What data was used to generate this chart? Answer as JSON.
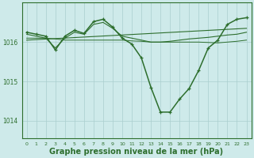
{
  "background_color": "#ceeaea",
  "grid_color": "#aacece",
  "line_color": "#2d6e2d",
  "xlabel": "Graphe pression niveau de la mer (hPa)",
  "xlabel_fontsize": 7,
  "xtick_labels": [
    "0",
    "1",
    "2",
    "3",
    "4",
    "5",
    "6",
    "7",
    "8",
    "9",
    "10",
    "11",
    "12",
    "13",
    "14",
    "15",
    "16",
    "17",
    "18",
    "19",
    "20",
    "21",
    "22",
    "23"
  ],
  "ytick_values": [
    1014,
    1015,
    1016
  ],
  "ylim": [
    1013.55,
    1017.0
  ],
  "xlim": [
    -0.5,
    23.5
  ],
  "series": [
    {
      "x": [
        0,
        23
      ],
      "y": [
        1016.05,
        1016.35
      ],
      "has_markers": false,
      "linewidth": 0.8
    },
    {
      "x": [
        0,
        1,
        2,
        3,
        4,
        5,
        6,
        7,
        8,
        9,
        10,
        11,
        12,
        13,
        14,
        15,
        16,
        17,
        18,
        19,
        20,
        21,
        22,
        23
      ],
      "y": [
        1016.1,
        1016.1,
        1016.1,
        1016.08,
        1016.05,
        1016.05,
        1016.05,
        1016.05,
        1016.05,
        1016.05,
        1016.05,
        1016.03,
        1016.02,
        1016.0,
        1016.0,
        1016.0,
        1016.0,
        1016.0,
        1016.0,
        1015.99,
        1015.98,
        1016.0,
        1016.02,
        1016.05
      ],
      "has_markers": false,
      "linewidth": 0.7
    },
    {
      "x": [
        0,
        1,
        2,
        3,
        4,
        5,
        6,
        7,
        8,
        9,
        10,
        11,
        12,
        13,
        14,
        15,
        16,
        17,
        18,
        19,
        20,
        21,
        22,
        23
      ],
      "y": [
        1016.2,
        1016.15,
        1016.1,
        1015.85,
        1016.1,
        1016.25,
        1016.2,
        1016.45,
        1016.5,
        1016.35,
        1016.15,
        1016.1,
        1016.05,
        1016.0,
        1016.0,
        1016.02,
        1016.05,
        1016.08,
        1016.1,
        1016.12,
        1016.15,
        1016.18,
        1016.2,
        1016.25
      ],
      "has_markers": false,
      "linewidth": 0.8
    },
    {
      "x": [
        0,
        1,
        2,
        3,
        4,
        5,
        6,
        7,
        8,
        9,
        10,
        11,
        12,
        13,
        14,
        15,
        16,
        17,
        18,
        19,
        20,
        21,
        22,
        23
      ],
      "y": [
        1016.25,
        1016.2,
        1016.15,
        1015.8,
        1016.15,
        1016.3,
        1016.22,
        1016.52,
        1016.58,
        1016.38,
        1016.1,
        1015.95,
        1015.6,
        1014.85,
        1014.22,
        1014.22,
        1014.55,
        1014.82,
        1015.28,
        1015.85,
        1016.05,
        1016.45,
        1016.58,
        1016.62
      ],
      "has_markers": true,
      "linewidth": 1.1
    }
  ]
}
